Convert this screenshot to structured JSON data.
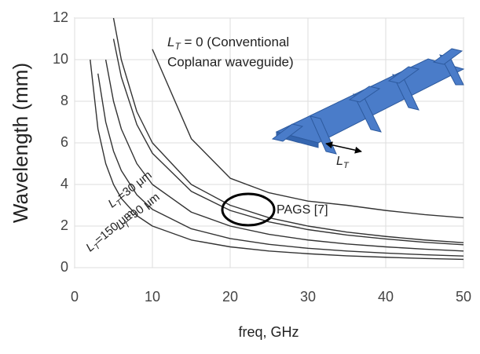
{
  "chart_data": {
    "type": "line",
    "x_label": "freq, GHz",
    "y_label": "Wavelength (mm)",
    "xlim": [
      0,
      50
    ],
    "xticks": [
      0,
      10,
      20,
      30,
      40,
      50
    ],
    "ylim": [
      0,
      12
    ],
    "yticks": [
      0,
      2,
      4,
      6,
      8,
      10,
      12
    ],
    "grid": true,
    "x": [
      2,
      3,
      4,
      5,
      6,
      8,
      10,
      15,
      20,
      25,
      30,
      35,
      40,
      45,
      50
    ],
    "series": [
      {
        "color": "#333333",
        "values": [
          null,
          null,
          null,
          null,
          null,
          null,
          10.5,
          6.2,
          4.3,
          3.6,
          3.2,
          3.0,
          2.75,
          2.55,
          2.4
        ]
      },
      {
        "color": "#333333",
        "values": [
          null,
          null,
          null,
          12,
          10,
          7.5,
          6,
          4,
          3,
          2.4,
          2,
          1.71,
          1.5,
          1.33,
          1.2
        ]
      },
      {
        "color": "#333333",
        "values": [
          null,
          null,
          null,
          11,
          9.17,
          6.88,
          5.5,
          3.67,
          2.75,
          2.2,
          1.83,
          1.57,
          1.38,
          1.22,
          1.1
        ]
      },
      {
        "color": "#333333",
        "values": [
          null,
          null,
          10,
          8,
          6.67,
          5,
          4,
          2.67,
          2,
          1.6,
          1.33,
          1.14,
          1,
          0.89,
          0.8
        ]
      },
      {
        "color": "#333333",
        "values": [
          null,
          9.33,
          7,
          5.6,
          4.67,
          3.5,
          2.8,
          1.87,
          1.4,
          1.12,
          0.93,
          0.8,
          0.7,
          0.62,
          0.56
        ]
      },
      {
        "color": "#333333",
        "values": [
          10,
          6.67,
          5,
          4,
          3.33,
          2.5,
          2,
          1.33,
          1,
          0.8,
          0.67,
          0.57,
          0.5,
          0.44,
          0.4
        ]
      }
    ],
    "annotations": [
      {
        "base": "L",
        "sub": "T",
        "text": " = 0 (Conventional",
        "line2": "Coplanar waveguide)"
      },
      {
        "base": "L",
        "sub": "T",
        "text": "=30 μm"
      },
      {
        "base": "L",
        "sub": "T",
        "text": "=90 μm"
      },
      {
        "base": "L",
        "sub": "T",
        "text": "=150 μm"
      },
      {
        "text": "PAGS [7]"
      },
      {
        "base": "L",
        "sub": "T"
      }
    ]
  }
}
